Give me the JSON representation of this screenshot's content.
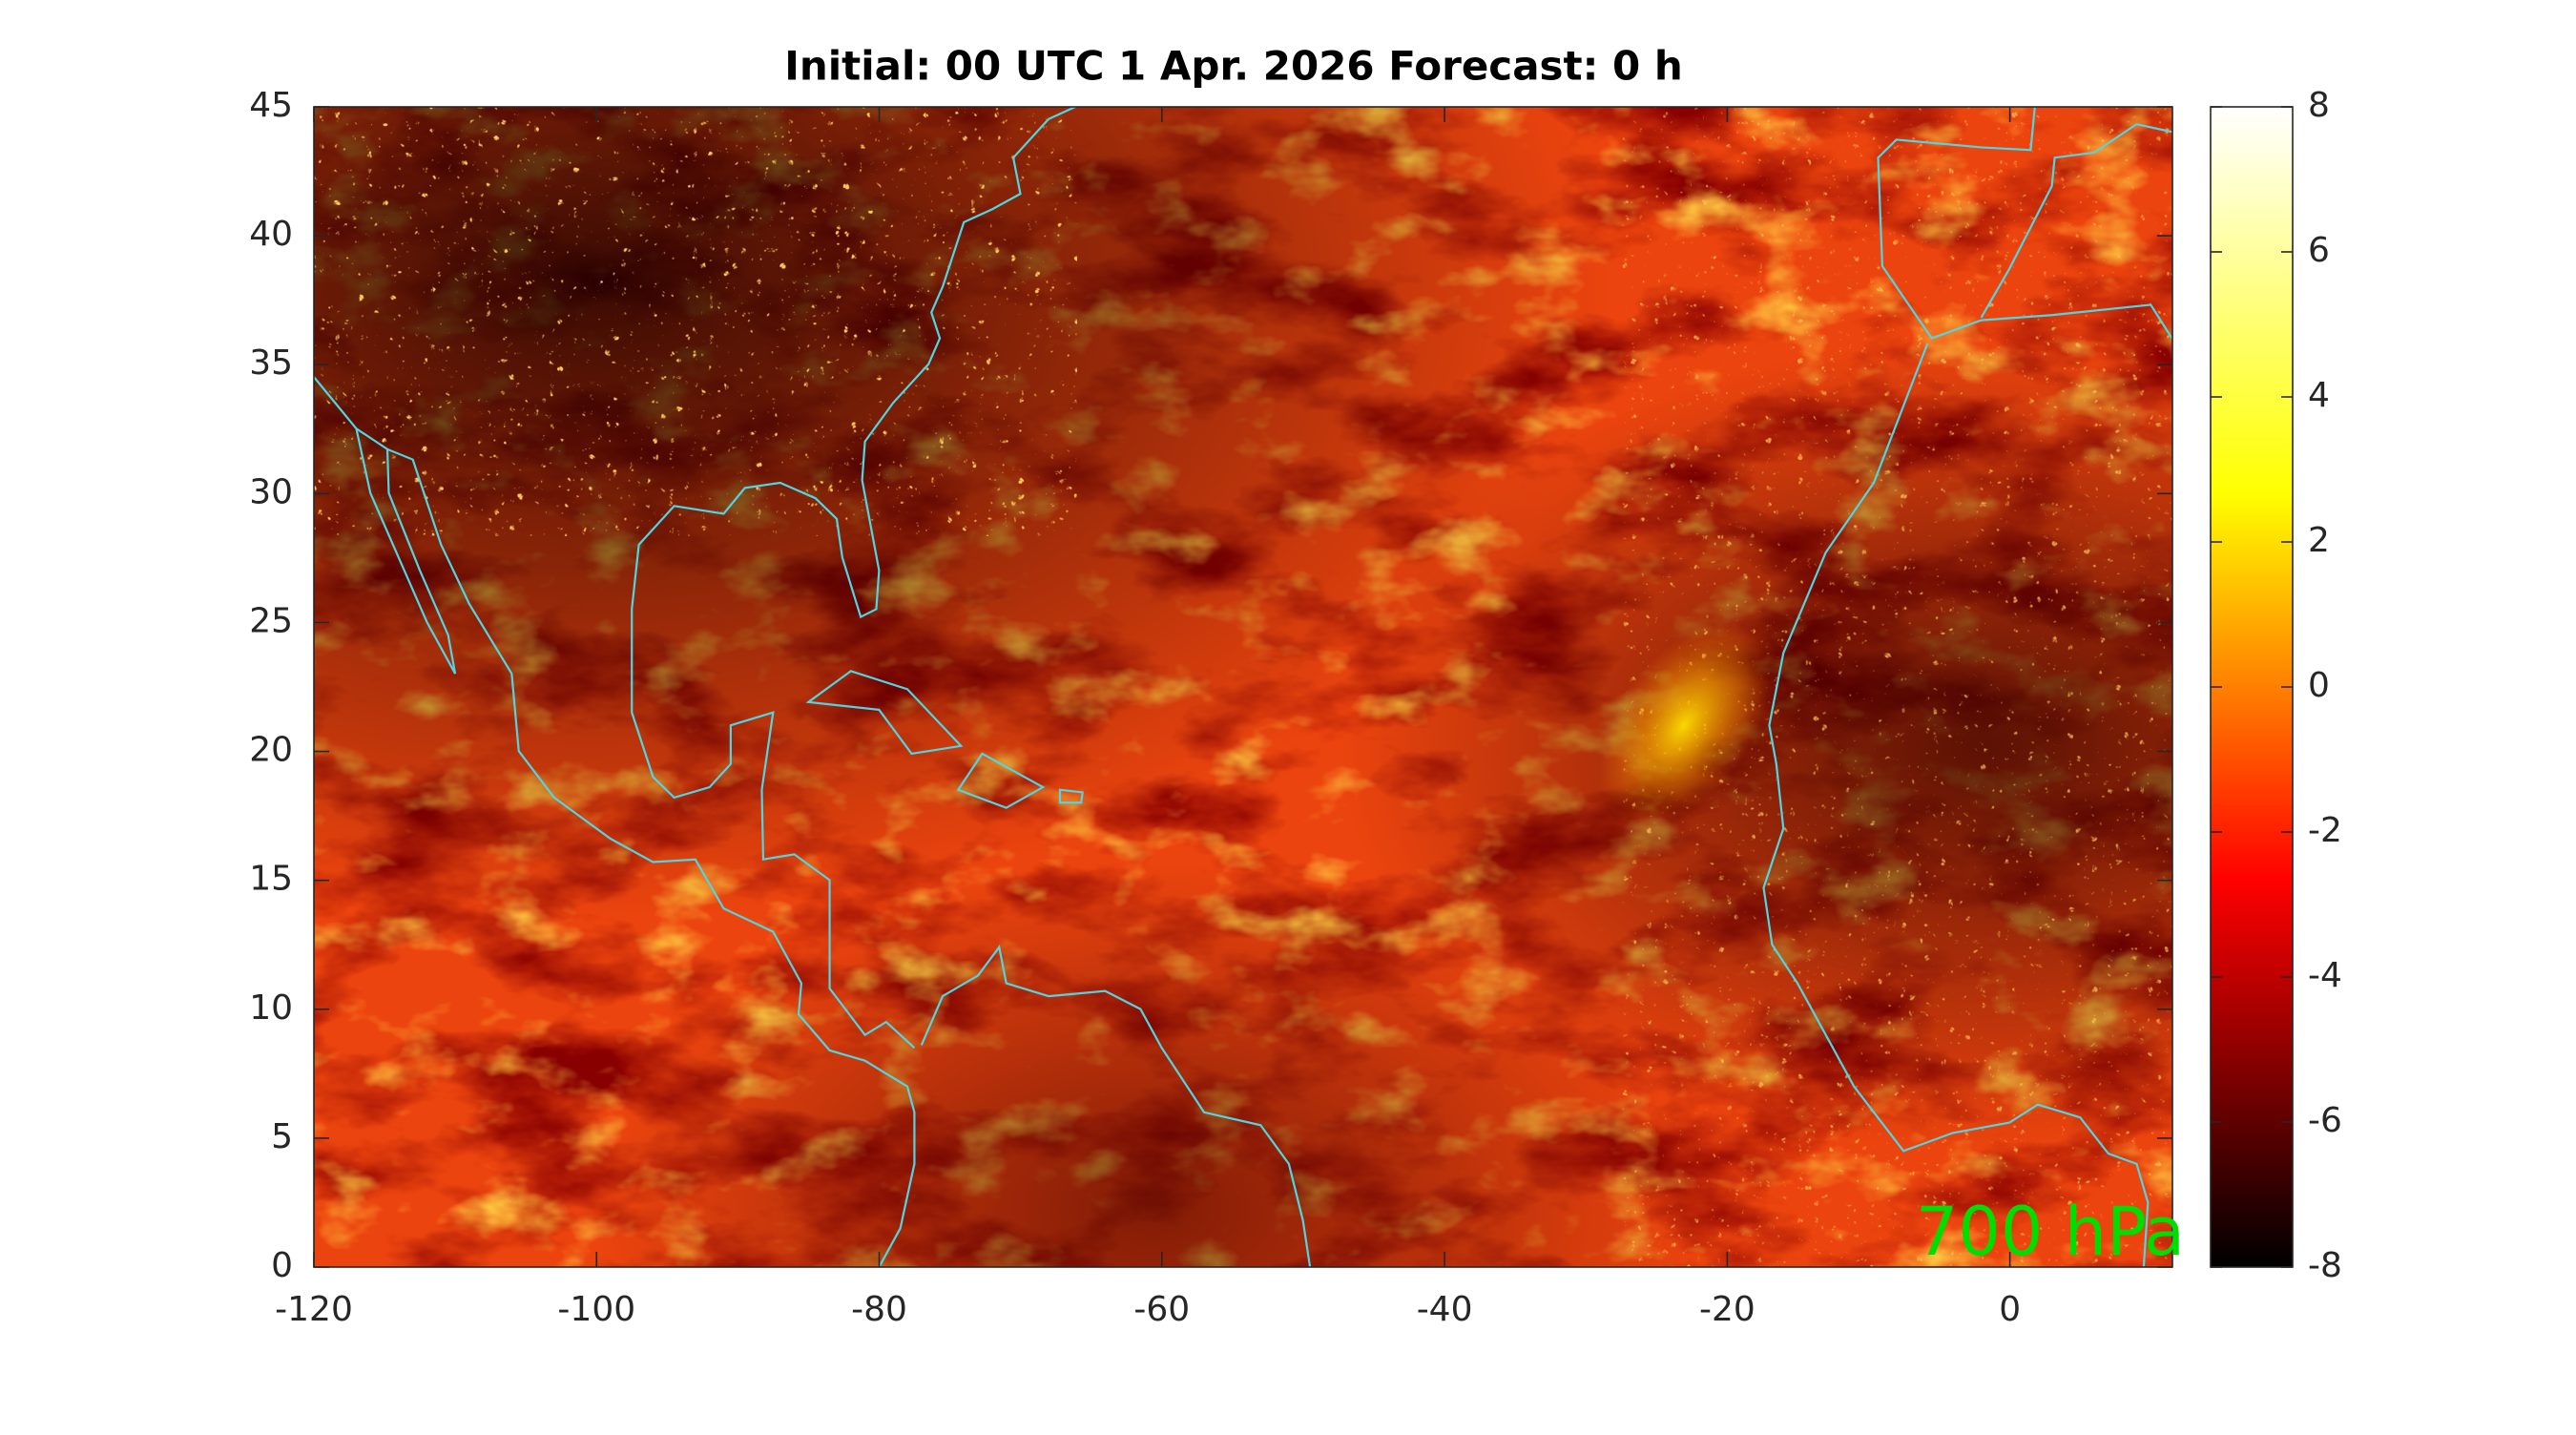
{
  "chart_data": {
    "type": "heatmap",
    "title": "Initial: 00 UTC 1 Apr. 2026 Forecast: 0 h",
    "xlim": [
      -120,
      11.5
    ],
    "ylim": [
      0,
      45
    ],
    "xticks": [
      -120,
      -100,
      -80,
      -60,
      -40,
      -20,
      0
    ],
    "yticks": [
      0,
      5,
      10,
      15,
      20,
      25,
      30,
      35,
      40,
      45
    ],
    "colorbar": {
      "lim": [
        -8,
        8
      ],
      "ticks": [
        -8,
        -6,
        -4,
        -2,
        0,
        2,
        4,
        6,
        8
      ],
      "colormap": [
        "#000000",
        "#ff0000",
        "#ffff00",
        "#ffffff"
      ]
    },
    "annotation": "700 hPa",
    "annotation_color": "#00dd00"
  }
}
